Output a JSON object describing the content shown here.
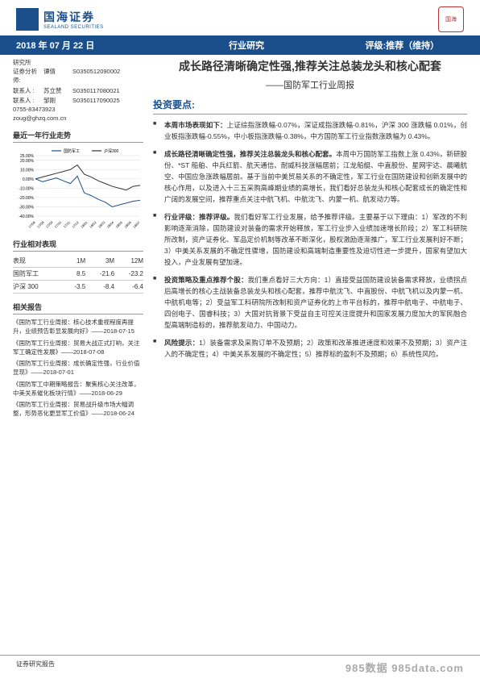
{
  "header": {
    "company_cn": "国海证券",
    "company_en": "SEALAND SECURITIES",
    "seal": "国海"
  },
  "blue_bar": {
    "date": "2018 年 07 月 22 日",
    "category": "行业研究",
    "rating": "评级:推荐（维持）"
  },
  "contacts": {
    "dept": "研究所",
    "rows": [
      {
        "lbl": "证券分析师:",
        "name": "谭倩",
        "code": "S0350512090002"
      },
      {
        "lbl": "联系人 :",
        "name": "苏立赞",
        "code": "S0350117080021"
      },
      {
        "lbl": "联系人 :",
        "name": "邹刚",
        "code": "S0350117090025"
      }
    ],
    "phone": "0755-83473923",
    "email": "zoug@ghzq.com.cn"
  },
  "title": {
    "main": "成长路径清晰确定性强,推荐关注总装龙头和核心配套",
    "sub": "——国防军工行业周报"
  },
  "chart": {
    "title": "最近一年行业走势",
    "legend": [
      "国防军工",
      "沪深300"
    ],
    "legend_colors": [
      "#1a4f8c",
      "#333333"
    ],
    "ylim": [
      -40,
      25
    ],
    "yticks": [
      -40,
      -30,
      -20,
      -10,
      0,
      10,
      20,
      25
    ],
    "xticks": [
      "17/08",
      "17/08",
      "17/09",
      "17/10",
      "17/11",
      "17/12",
      "18/01",
      "18/02",
      "18/03",
      "18/04",
      "18/05",
      "18/06",
      "18/07"
    ],
    "series": [
      {
        "color": "#1a4f8c",
        "values": [
          0,
          -3,
          -1,
          1,
          -2,
          -5,
          3,
          -15,
          -18,
          -22,
          -25,
          -30,
          -28,
          -26,
          -24,
          -23
        ]
      },
      {
        "color": "#333333",
        "values": [
          0,
          2,
          4,
          6,
          8,
          10,
          15,
          5,
          2,
          -2,
          -5,
          -8,
          -10,
          -12,
          -8,
          -7
        ]
      }
    ],
    "grid_color": "#ddd",
    "background_color": "#ffffff"
  },
  "perf": {
    "title": "行业相对表现",
    "cols": [
      "表现",
      "1M",
      "3M",
      "12M"
    ],
    "rows": [
      [
        "国防军工",
        "8.5",
        "-21.6",
        "-23.2"
      ],
      [
        "沪深 300",
        "-3.5",
        "-8.4",
        "-6.4"
      ]
    ]
  },
  "related": {
    "title": "相关报告",
    "items": [
      "《国防军工行业周报：核心技术重视程度再提升，业绩预告彰显发展向好》——2018-07-15",
      "《国防军工行业周报：贸易大战正式打响，关注军工确定性发展》——2018-07-08",
      "《国防军工行业周报：成长确定性强，行业价值显现》——2018-07-01",
      "《国防军工中期策略报告：聚焦核心关注改革，中美关系催化板块行情》——2018-06-29",
      "《国防军工行业周报：贸易战升级市场大幅调整，形势恶化更显军工价值》——2018-06-24"
    ]
  },
  "invest": {
    "head": "投资要点:",
    "bullets": [
      {
        "lead": "本周市场表现如下：",
        "body": "上证综指涨跌幅-0.07%，深证成指涨跌幅-0.81%，沪深 300 涨跌幅 0.01%，创业板指涨跌幅-0.55%，中小板指涨跌幅-0.38%，中方国防军工行业指数涨跌幅为 0.43%。"
      },
      {
        "lead": "成长路径清晰确定性强，推荐关注总装龙头和核心配套。",
        "body": "本周中万国防军工指数上涨 0.43%，新研股份、*ST 船舶、中兵红箭、航天通信、耐威科技涨幅居前；江龙船艇、中直股份、星网宇达、晨曦航空、中国应急涨跌幅居前。基于当前中美贸易关系的不确定性，军工行业在国防建设和创新发展中的核心作用，以及进入十三五采购高峰期业绩的高增长，我们看好总装龙头和核心配套成长的确定性和广阔的发展空间，推荐重点关注中航飞机、中航沈飞、内蒙一机、航发动力等。"
      },
      {
        "lead": "行业评级：推荐评级。",
        "body": "我们看好军工行业发展，给予推荐评级。主要基于以下理由：1）军改的不利影响逐渐消除，国防建设对装备的需求开始释放，军工行业步入业绩加速增长阶段；2）军工科研院所改制，资产证券化、军品定价机制等改革不断深化，股权激励逐渐推广，军工行业发展利好不断；3）中美关系发展的不确定性骤增，国防建设和高端制造重要性及迫切性进一步提升，国家有望加大投入，产业发展有望加速。"
      },
      {
        "lead": "投资策略及重点推荐个股：",
        "body": "我们重点看好三大方向：1）直接受益国防建设装备需求释放，业绩拐点后高增长的核心主战装备总装龙头和核心配套，推荐中航沈飞、中直股份、中航飞机以及内蒙一机、中航机电等；2）受益军工科研院所改制和资产证券化的上市平台标的，推荐中航电子、中航电子、四创电子、国睿科技；3）大国对抗背景下受益自主可控关注度提升和国家发展力度加大的军民融合型高端制造标的，推荐航发动力、中国动力。"
      },
      {
        "lead": "风险提示：",
        "body": "1）装备需求及采购订单不及预期；2）政策和改革推进速度和效果不及预期；3）资产注入的不确定性；4）中美关系发展的不确定性；5）推荐标的盈利不及预期；6）系统性风险。"
      }
    ]
  },
  "footer": {
    "left": "证券研究报告",
    "watermark": "985数据 985data.com"
  }
}
